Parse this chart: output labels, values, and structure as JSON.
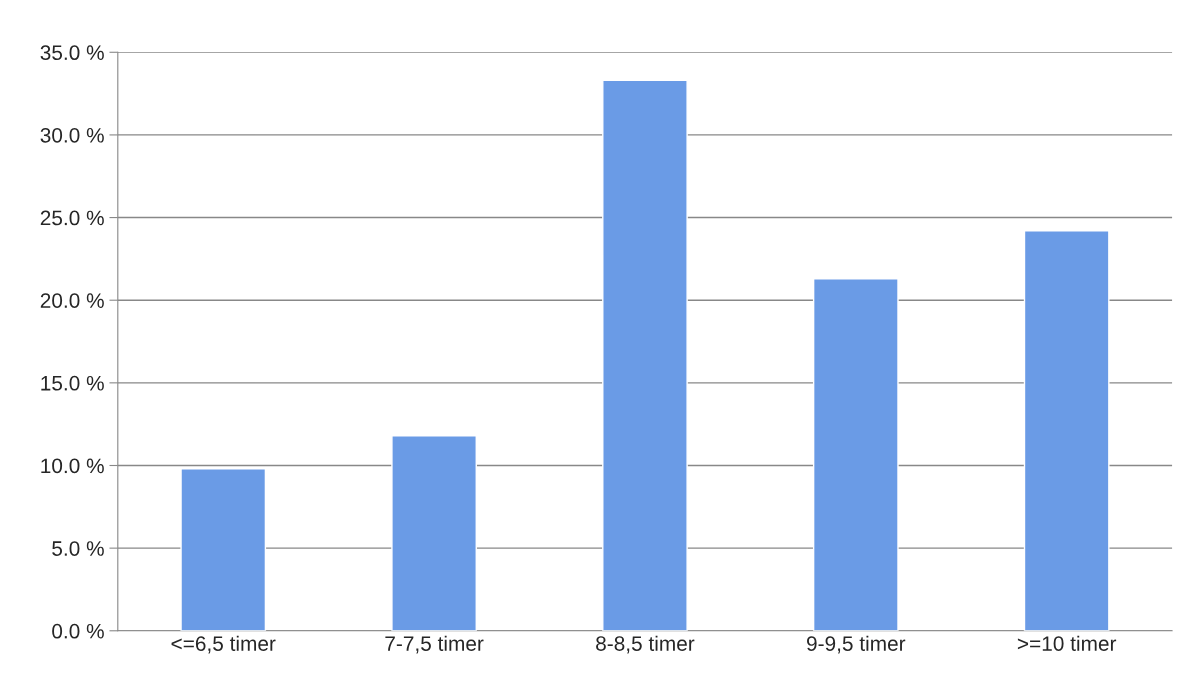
{
  "chart_data": {
    "type": "bar",
    "categories": [
      "<=6,5 timer",
      "7-7,5 timer",
      "8-8,5 timer",
      "9-9,5 timer",
      ">=10 timer"
    ],
    "values": [
      9.8,
      11.8,
      33.3,
      21.3,
      24.2
    ],
    "color": "#6a9be6",
    "ylim": [
      0,
      35
    ],
    "yticks": [
      {
        "value": 0,
        "label": "0.0 %"
      },
      {
        "value": 5,
        "label": "5.0 %"
      },
      {
        "value": 10,
        "label": "10.0 %"
      },
      {
        "value": 15,
        "label": "15.0 %"
      },
      {
        "value": 20,
        "label": "20.0 %"
      },
      {
        "value": 25,
        "label": "25.0 %"
      },
      {
        "value": 30,
        "label": "30.0 %"
      },
      {
        "value": 35,
        "label": "35.0 %"
      }
    ],
    "grid": "y",
    "legend": false
  }
}
